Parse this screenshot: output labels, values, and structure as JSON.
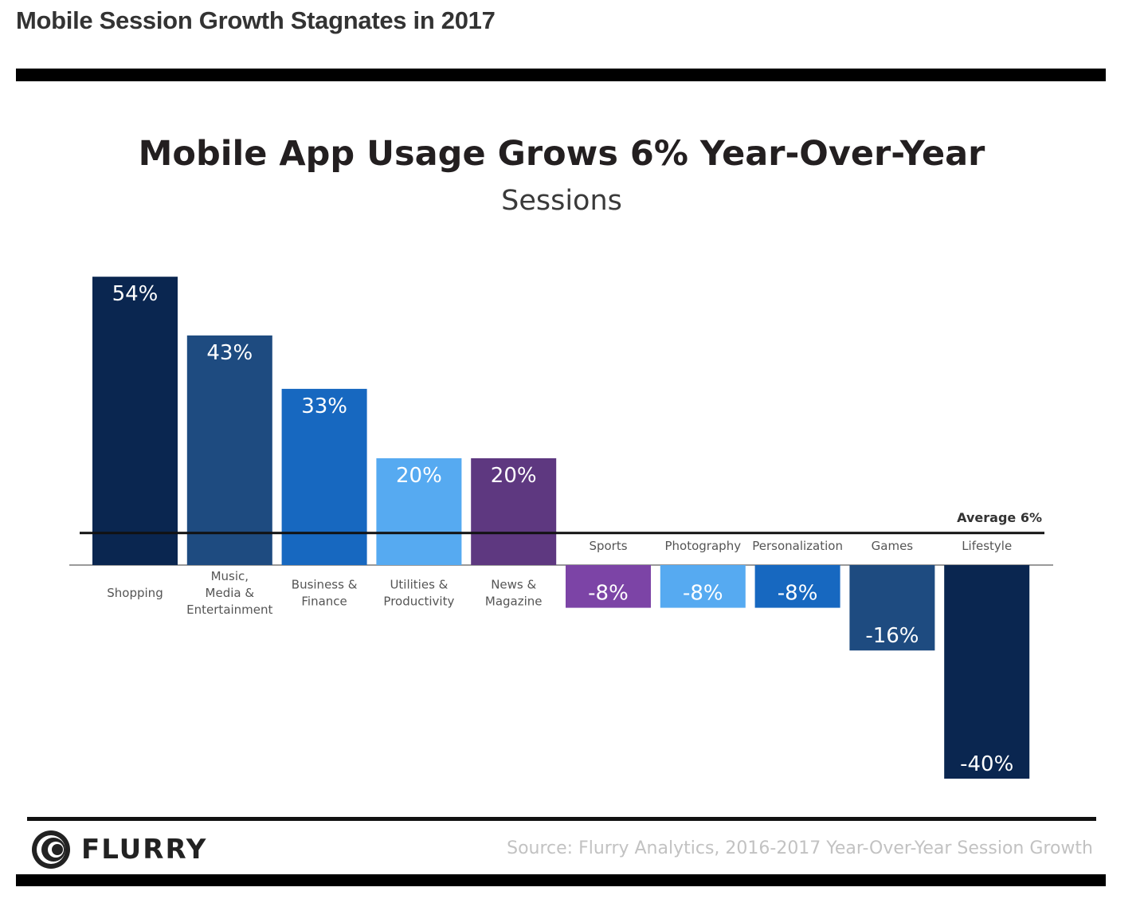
{
  "page": {
    "title": "Mobile Session Growth Stagnates in 2017"
  },
  "chart_data": {
    "type": "bar",
    "title": "Mobile App Usage Grows 6% Year-Over-Year",
    "subtitle": "Sessions",
    "categories": [
      "Shopping",
      "Music, Media & Entertainment",
      "Business & Finance",
      "Utilities & Productivity",
      "News & Magazine",
      "Sports",
      "Photography",
      "Personalization",
      "Games",
      "Lifestyle"
    ],
    "category_label_lines": [
      [
        "Shopping"
      ],
      [
        "Music,",
        "Media &",
        "Entertainment"
      ],
      [
        "Business &",
        "Finance"
      ],
      [
        "Utilities &",
        "Productivity"
      ],
      [
        "News &",
        "Magazine"
      ],
      [
        "Sports"
      ],
      [
        "Photography"
      ],
      [
        "Personalization"
      ],
      [
        "Games"
      ],
      [
        "Lifestyle"
      ]
    ],
    "values": [
      54,
      43,
      33,
      20,
      20,
      -8,
      -8,
      -8,
      -16,
      -40
    ],
    "data_labels": [
      "54%",
      "43%",
      "33%",
      "20%",
      "20%",
      "-8%",
      "-8%",
      "-8%",
      "-16%",
      "-40%"
    ],
    "colors": [
      "#0a2650",
      "#1e4b80",
      "#1768c0",
      "#56aaf1",
      "#5e3880",
      "#7c44a6",
      "#56aaf1",
      "#1768c0",
      "#1e4b80",
      "#0a2650"
    ],
    "reference_line": {
      "value": 6,
      "label": "Average 6%"
    },
    "xlabel": "",
    "ylabel": "",
    "ylim": [
      -40,
      54
    ],
    "grid": false,
    "legend": "none"
  },
  "footer": {
    "brand": "FLURRY",
    "source": "Source: Flurry Analytics, 2016-2017 Year-Over-Year Session Growth"
  }
}
